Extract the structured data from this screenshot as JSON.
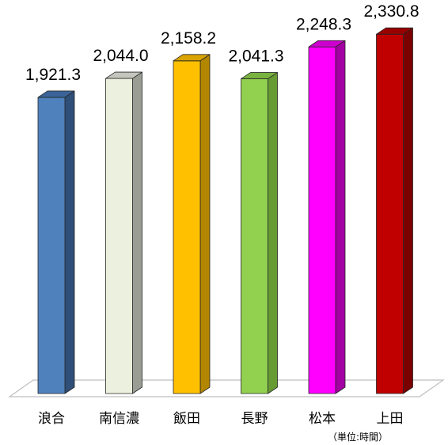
{
  "chart_data": {
    "type": "bar",
    "style": "3d-column",
    "categories": [
      "浪合",
      "南信濃",
      "飯田",
      "長野",
      "松本",
      "上田"
    ],
    "values": [
      1921.3,
      2044.0,
      2158.2,
      2041.3,
      2248.3,
      2330.8
    ],
    "value_labels": [
      "1,921.3",
      "2,044.0",
      "2,158.2",
      "2,041.3",
      "2,248.3",
      "2,330.8"
    ],
    "unit_note": "（単位:時間）",
    "ylim": [
      0,
      2450
    ],
    "grid": false,
    "legend": "none",
    "colors": {
      "front": [
        "#4f81bd",
        "#ebf1de",
        "#ffc000",
        "#92d050",
        "#ff00ff",
        "#c00000"
      ],
      "side": [
        "#2f4f79",
        "#9a9d94",
        "#b38600",
        "#669a33",
        "#a300a3",
        "#7a0000"
      ],
      "top": [
        "#3a6499",
        "#c4c6bd",
        "#d9a300",
        "#78b23f",
        "#cc00cc",
        "#990000"
      ],
      "floor": "#bfbfbf"
    }
  }
}
